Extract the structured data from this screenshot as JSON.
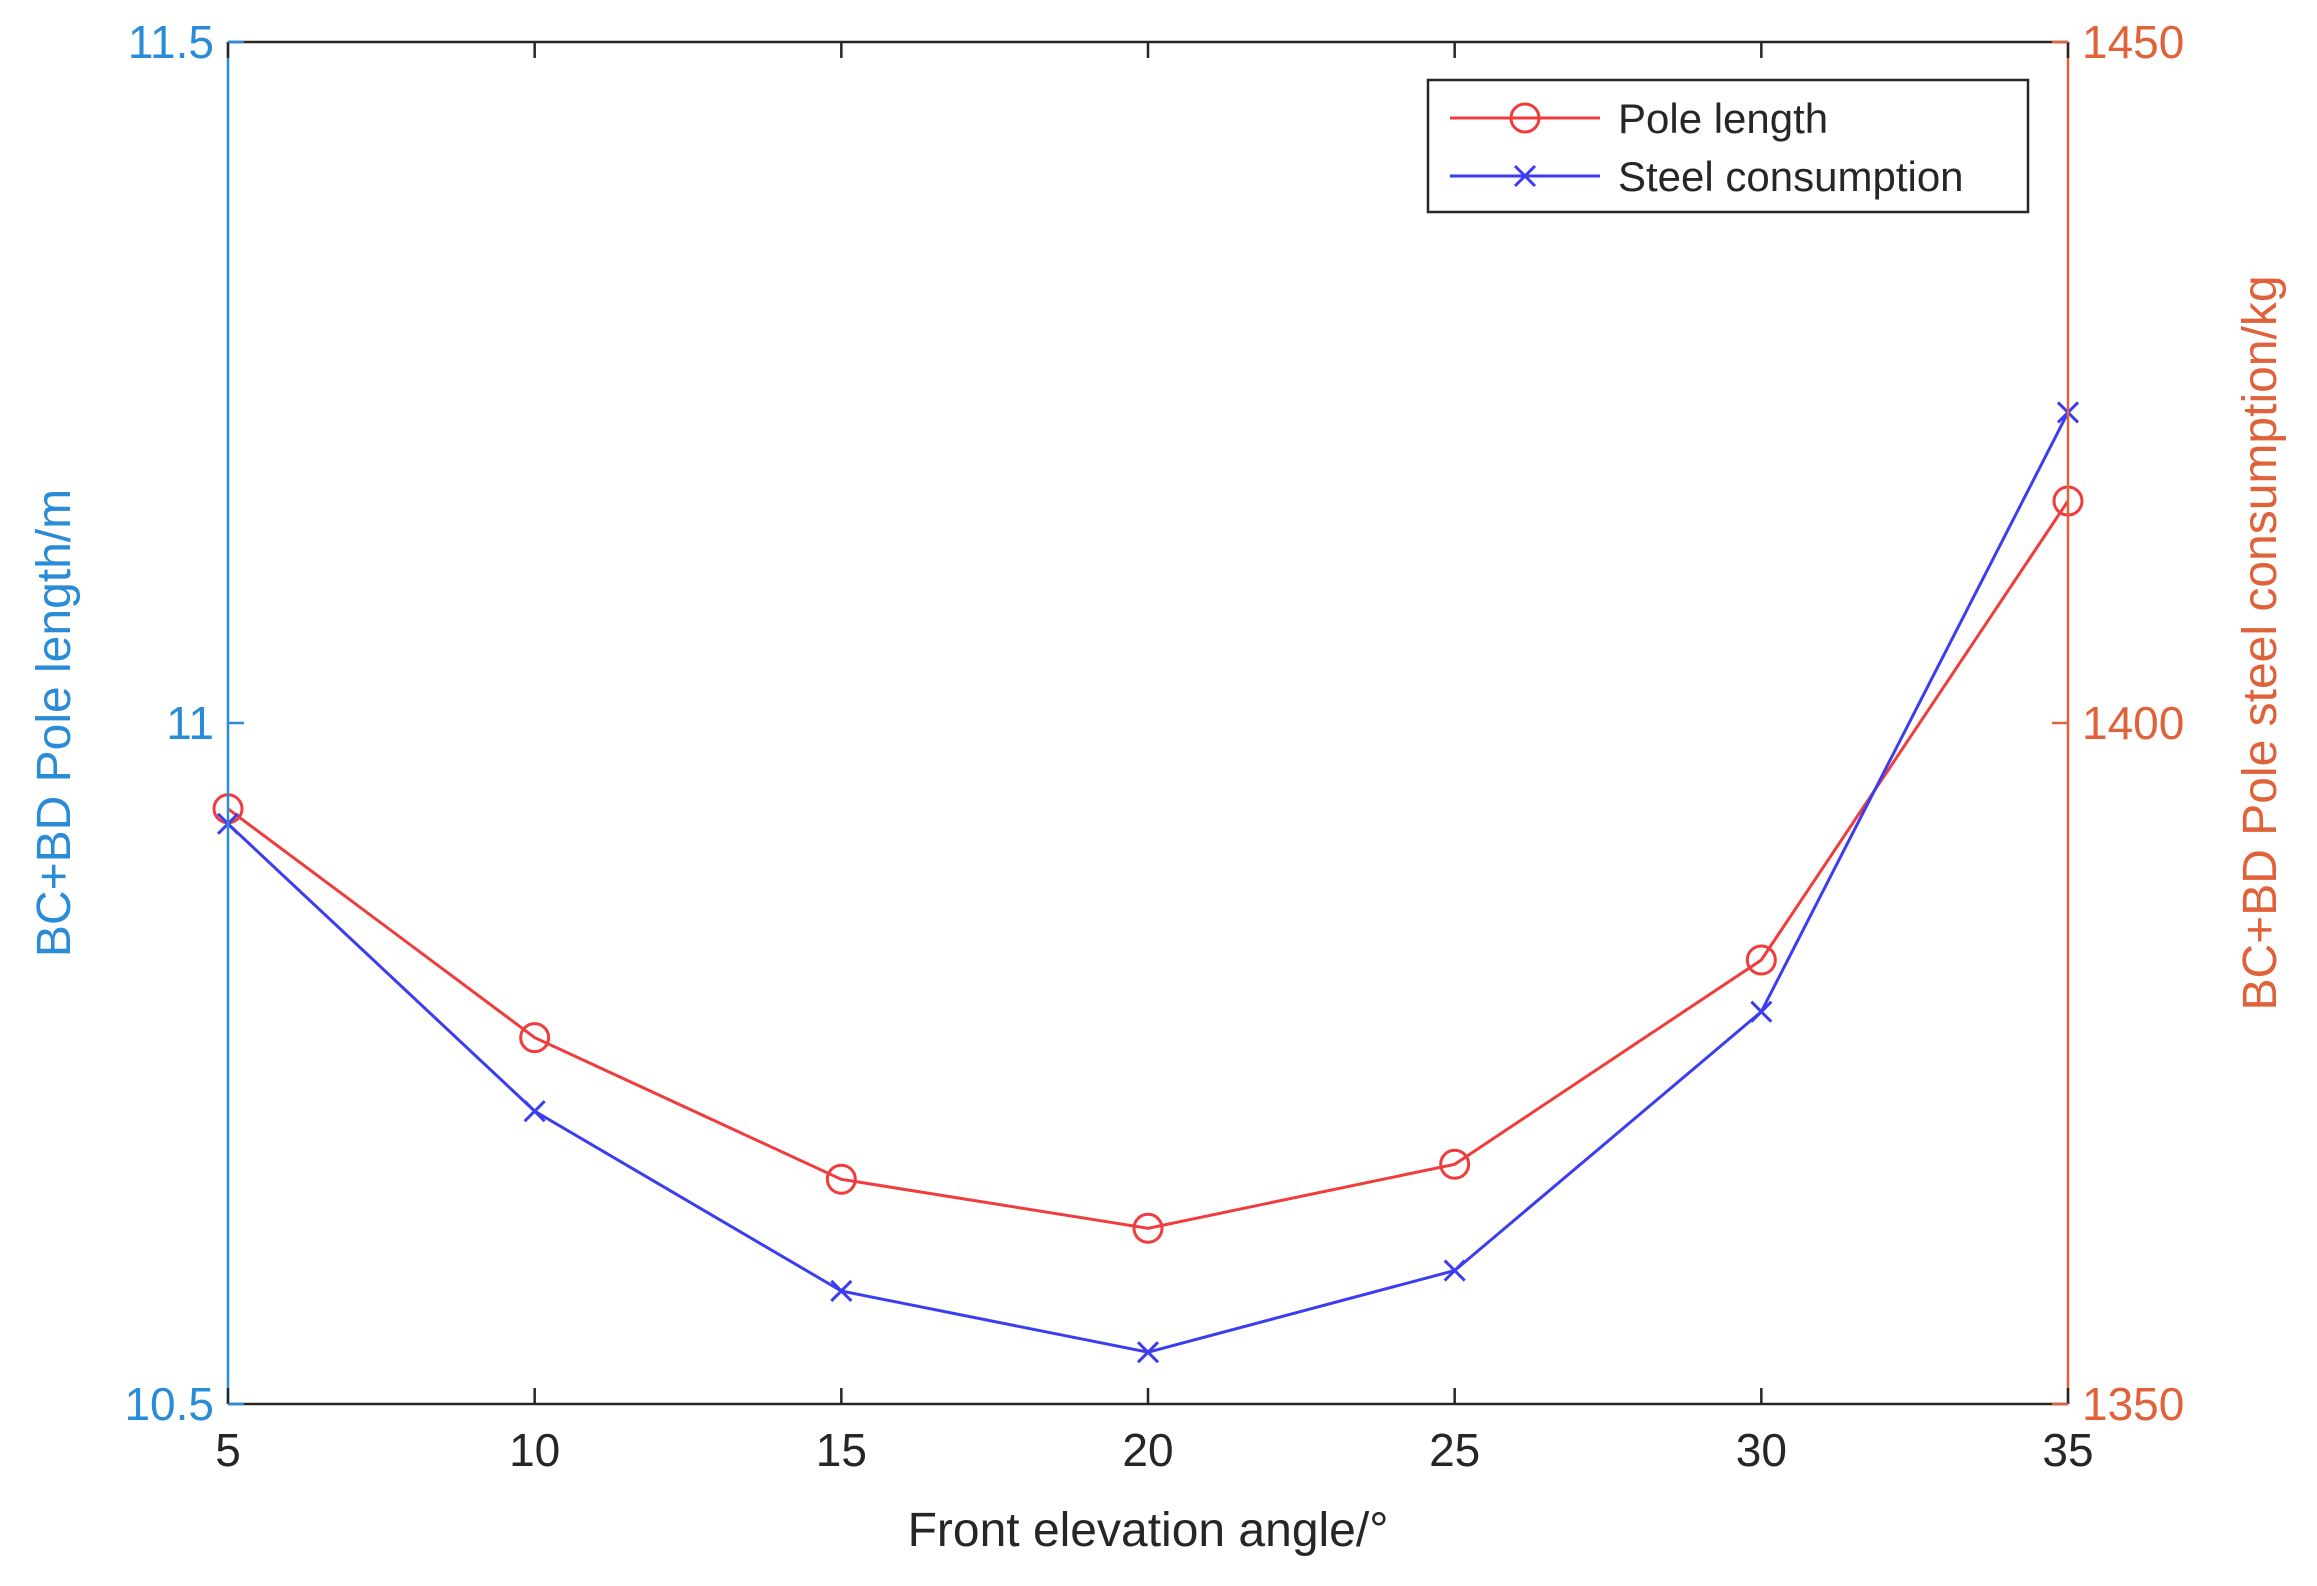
{
  "colors": {
    "left_axis": "#2a8bd6",
    "right_axis": "#e0623a",
    "bottom_axis": "#262626",
    "pole_length": "#f03c3c",
    "steel_consumption": "#3c3cf0"
  },
  "chart_data": {
    "type": "line",
    "xlabel": "Front elevation angle/°",
    "ylabel_left": "BC+BD Pole length/m",
    "ylabel_right": "BC+BD Pole steel consumption/kg",
    "xlim": [
      5,
      35
    ],
    "ylim_left": [
      10.5,
      11.5
    ],
    "ylim_right": [
      1350,
      1450
    ],
    "x_ticks": [
      "5",
      "10",
      "15",
      "20",
      "25",
      "30",
      "35"
    ],
    "y_left_ticks": [
      "10.5",
      "11",
      "11.5"
    ],
    "y_right_ticks": [
      "1350",
      "1400",
      "1450"
    ],
    "x": [
      5,
      10,
      15,
      20,
      25,
      30,
      35
    ],
    "grid": false,
    "legend_position": "top-right",
    "series": [
      {
        "name": "Pole length",
        "axis": "left",
        "marker": "circle",
        "values": [
          10.937,
          10.769,
          10.665,
          10.629,
          10.676,
          10.826,
          11.163
        ]
      },
      {
        "name": "Steel consumption",
        "axis": "right",
        "marker": "x",
        "values": [
          1392.6,
          1371.5,
          1358.3,
          1353.8,
          1359.8,
          1378.8,
          1422.8
        ]
      }
    ]
  }
}
